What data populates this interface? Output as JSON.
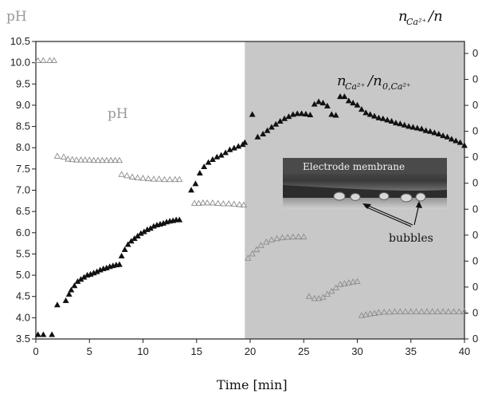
{
  "chart_data": {
    "type": "scatter",
    "xlabel": "Time [min]",
    "ylabel_left": "pH",
    "ylabel_right": "n_Ca2+/n",
    "x_ticks": [
      "0",
      "5",
      "10",
      "15",
      "20",
      "25",
      "30",
      "35",
      "40"
    ],
    "y_ticks": [
      "3.5",
      "4.0",
      "4.5",
      "5.0",
      "5.5",
      "6.0",
      "6.5",
      "7.0",
      "7.5",
      "8.0",
      "8.5",
      "9.0",
      "9.5",
      "10.0",
      "10.5"
    ],
    "right_ticks": [
      "0",
      "0",
      "0",
      "0",
      "0",
      "0",
      "0",
      "0",
      "0",
      "0",
      "0",
      "0"
    ],
    "xlim": [
      0,
      40
    ],
    "ylim": [
      3.5,
      10.5
    ],
    "shaded_region_x": [
      19.5,
      40
    ],
    "annotations": {
      "ph_inside": "pH",
      "ratio_inside": "n_Ca2+/n_0,Ca2+",
      "inset_caption": "Electrode membrane",
      "bubbles": "bubbles"
    },
    "series": [
      {
        "name": "pH",
        "marker": "open-triangle",
        "color": "#8c8c8c",
        "x": [
          0.2,
          0.7,
          1.3,
          1.7,
          2.0,
          2.6,
          3.0,
          3.4,
          3.8,
          4.2,
          4.6,
          5.0,
          5.4,
          5.8,
          6.2,
          6.6,
          7.0,
          7.4,
          7.8,
          8.0,
          8.5,
          9.0,
          9.5,
          10.0,
          10.5,
          11.0,
          11.5,
          12.0,
          12.5,
          13.0,
          13.4,
          14.8,
          15.2,
          15.6,
          16.0,
          16.5,
          17.0,
          17.5,
          18.0,
          18.5,
          19.0,
          19.4,
          19.8,
          20.2,
          20.6,
          21.0,
          21.5,
          22.0,
          22.5,
          23.0,
          23.5,
          24.0,
          24.5,
          25.0,
          25.5,
          26.0,
          26.4,
          26.8,
          27.2,
          27.6,
          28.0,
          28.4,
          28.8,
          29.2,
          29.6,
          30.0,
          30.4,
          30.8,
          31.2,
          31.6,
          32.0,
          32.5,
          33.0,
          33.5,
          34.0,
          34.5,
          35.0,
          35.5,
          36.0,
          36.5,
          37.0,
          37.5,
          38.0,
          38.5,
          39.0,
          39.5,
          40.0
        ],
        "y": [
          10.05,
          10.05,
          10.05,
          10.05,
          7.8,
          7.78,
          7.73,
          7.72,
          7.71,
          7.71,
          7.71,
          7.71,
          7.7,
          7.7,
          7.7,
          7.7,
          7.7,
          7.7,
          7.7,
          7.37,
          7.34,
          7.31,
          7.29,
          7.28,
          7.27,
          7.26,
          7.26,
          7.25,
          7.25,
          7.25,
          7.25,
          6.69,
          6.69,
          6.7,
          6.7,
          6.7,
          6.69,
          6.68,
          6.68,
          6.67,
          6.66,
          6.65,
          5.4,
          5.5,
          5.6,
          5.7,
          5.78,
          5.83,
          5.86,
          5.88,
          5.89,
          5.9,
          5.9,
          5.9,
          4.5,
          4.45,
          4.45,
          4.48,
          4.55,
          4.62,
          4.7,
          4.78,
          4.8,
          4.82,
          4.84,
          4.85,
          4.05,
          4.07,
          4.09,
          4.1,
          4.12,
          4.13,
          4.13,
          4.14,
          4.14,
          4.14,
          4.14,
          4.14,
          4.14,
          4.14,
          4.14,
          4.14,
          4.14,
          4.14,
          4.14,
          4.14,
          4.14
        ]
      },
      {
        "name": "n_Ca2+/n_0,Ca2+",
        "marker": "filled-triangle",
        "color": "#111111",
        "x": [
          0.2,
          0.7,
          1.5,
          2.0,
          2.8,
          3.1,
          3.3,
          3.6,
          3.9,
          4.2,
          4.5,
          4.8,
          5.1,
          5.4,
          5.7,
          6.0,
          6.3,
          6.6,
          6.9,
          7.2,
          7.5,
          7.8,
          8.0,
          8.3,
          8.6,
          8.9,
          9.2,
          9.5,
          9.8,
          10.1,
          10.4,
          10.7,
          11.0,
          11.3,
          11.6,
          11.9,
          12.2,
          12.5,
          12.8,
          13.1,
          13.4,
          14.5,
          14.9,
          15.3,
          15.7,
          16.1,
          16.5,
          16.9,
          17.3,
          17.7,
          18.1,
          18.5,
          18.9,
          19.3,
          19.5,
          20.2,
          20.7,
          21.2,
          21.6,
          22.0,
          22.4,
          22.8,
          23.2,
          23.6,
          24.0,
          24.4,
          24.8,
          25.2,
          25.6,
          26.0,
          26.4,
          26.8,
          27.2,
          27.6,
          28.0,
          28.4,
          28.8,
          29.2,
          29.6,
          30.0,
          30.4,
          30.8,
          31.2,
          31.6,
          32.0,
          32.4,
          32.8,
          33.2,
          33.6,
          34.0,
          34.4,
          34.8,
          35.2,
          35.6,
          36.0,
          36.4,
          36.8,
          37.2,
          37.6,
          38.0,
          38.4,
          38.8,
          39.2,
          39.6,
          40.0
        ],
        "y": [
          3.6,
          3.6,
          3.6,
          4.3,
          4.4,
          4.55,
          4.65,
          4.75,
          4.85,
          4.9,
          4.95,
          5.0,
          5.02,
          5.05,
          5.08,
          5.12,
          5.15,
          5.17,
          5.2,
          5.22,
          5.24,
          5.25,
          5.45,
          5.6,
          5.72,
          5.8,
          5.86,
          5.92,
          5.98,
          6.02,
          6.07,
          6.1,
          6.15,
          6.18,
          6.2,
          6.22,
          6.25,
          6.27,
          6.28,
          6.3,
          6.3,
          7.0,
          7.15,
          7.4,
          7.55,
          7.65,
          7.72,
          7.78,
          7.82,
          7.88,
          7.95,
          7.99,
          8.03,
          8.07,
          8.12,
          8.78,
          8.25,
          8.32,
          8.4,
          8.48,
          8.55,
          8.62,
          8.68,
          8.73,
          8.78,
          8.8,
          8.8,
          8.79,
          8.77,
          9.02,
          9.08,
          9.05,
          8.98,
          8.78,
          8.76,
          9.2,
          9.2,
          9.1,
          9.05,
          9.0,
          8.9,
          8.82,
          8.78,
          8.74,
          8.7,
          8.68,
          8.65,
          8.62,
          8.58,
          8.56,
          8.53,
          8.5,
          8.48,
          8.46,
          8.44,
          8.4,
          8.38,
          8.35,
          8.32,
          8.28,
          8.25,
          8.2,
          8.16,
          8.12,
          8.05
        ]
      }
    ]
  }
}
